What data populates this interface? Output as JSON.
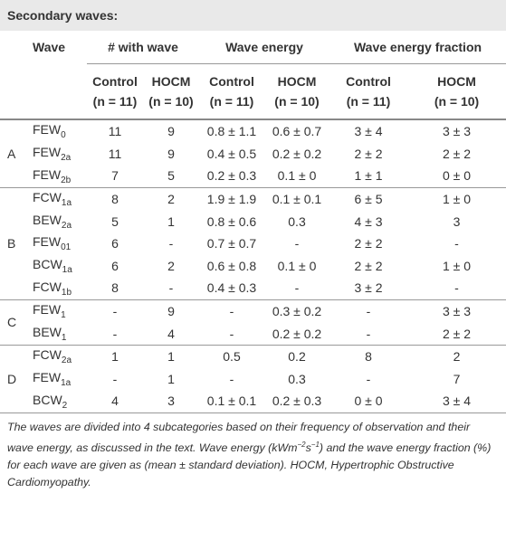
{
  "title": "Secondary waves:",
  "header": {
    "wave": "Wave",
    "groups": [
      "# with wave",
      "Wave energy",
      "Wave energy fraction"
    ],
    "sub": [
      {
        "label": "Control",
        "n": "(n = 11)"
      },
      {
        "label": "HOCM",
        "n": "(n = 10)"
      },
      {
        "label": "Control",
        "n": "(n = 11)"
      },
      {
        "label": "HOCM",
        "n": "(n = 10)"
      },
      {
        "label": "Control",
        "n": "(n = 11)"
      },
      {
        "label": "HOCM",
        "n": "(n = 10)"
      }
    ]
  },
  "groups": [
    {
      "label": "A",
      "rows": [
        {
          "wave": {
            "base": "FEW",
            "sub": "0"
          },
          "cells": [
            "11",
            "9",
            "0.8 ± 1.1",
            "0.6 ± 0.7",
            "3 ± 4",
            "3 ± 3"
          ]
        },
        {
          "wave": {
            "base": "FEW",
            "sub": "2a"
          },
          "cells": [
            "11",
            "9",
            "0.4 ± 0.5",
            "0.2 ± 0.2",
            "2 ± 2",
            "2 ± 2"
          ]
        },
        {
          "wave": {
            "base": "FEW",
            "sub": "2b"
          },
          "cells": [
            "7",
            "5",
            "0.2 ± 0.3",
            "0.1 ± 0",
            "1 ± 1",
            "0 ± 0"
          ]
        }
      ]
    },
    {
      "label": "B",
      "rows": [
        {
          "wave": {
            "base": "FCW",
            "sub": "1a"
          },
          "cells": [
            "8",
            "2",
            "1.9 ± 1.9",
            "0.1 ± 0.1",
            "6 ± 5",
            "1 ± 0"
          ]
        },
        {
          "wave": {
            "base": "BEW",
            "sub": "2a"
          },
          "cells": [
            "5",
            "1",
            "0.8 ± 0.6",
            "0.3",
            "4 ± 3",
            "3"
          ]
        },
        {
          "wave": {
            "base": "FEW",
            "sub": "01"
          },
          "cells": [
            "6",
            "-",
            "0.7 ± 0.7",
            "-",
            "2 ± 2",
            "-"
          ]
        },
        {
          "wave": {
            "base": "BCW",
            "sub": "1a"
          },
          "cells": [
            "6",
            "2",
            "0.6 ± 0.8",
            "0.1 ± 0",
            "2 ± 2",
            "1 ± 0"
          ]
        },
        {
          "wave": {
            "base": "FCW",
            "sub": "1b"
          },
          "cells": [
            "8",
            "-",
            "0.4 ± 0.3",
            "-",
            "3 ± 2",
            "-"
          ]
        }
      ]
    },
    {
      "label": "C",
      "rows": [
        {
          "wave": {
            "base": "FEW",
            "sub": "1"
          },
          "cells": [
            "-",
            "9",
            "-",
            "0.3 ± 0.2",
            "-",
            "3 ± 3"
          ]
        },
        {
          "wave": {
            "base": "BEW",
            "sub": "1"
          },
          "cells": [
            "-",
            "4",
            "-",
            "0.2 ± 0.2",
            "-",
            "2 ± 2"
          ]
        }
      ]
    },
    {
      "label": "D",
      "rows": [
        {
          "wave": {
            "base": "FCW",
            "sub": "2a"
          },
          "cells": [
            "1",
            "1",
            "0.5",
            "0.2",
            "8",
            "2"
          ]
        },
        {
          "wave": {
            "base": "FEW",
            "sub": "1a"
          },
          "cells": [
            "-",
            "1",
            "-",
            "0.3",
            "-",
            "7"
          ]
        },
        {
          "wave": {
            "base": "BCW",
            "sub": "2"
          },
          "cells": [
            "4",
            "3",
            "0.1 ± 0.1",
            "0.2 ± 0.3",
            "0 ± 0",
            "3 ± 4"
          ]
        }
      ]
    }
  ],
  "footnote": [
    "The waves are divided into 4 subcategories based on their frequency of observation and their wave energy, as discussed in the text. Wave energy (kWm",
    "−2",
    "s",
    "−1",
    ") and the wave energy fraction (%) for each wave are given as (mean ± standard deviation). HOCM, Hypertrophic Obstructive Cardiomyopathy."
  ]
}
